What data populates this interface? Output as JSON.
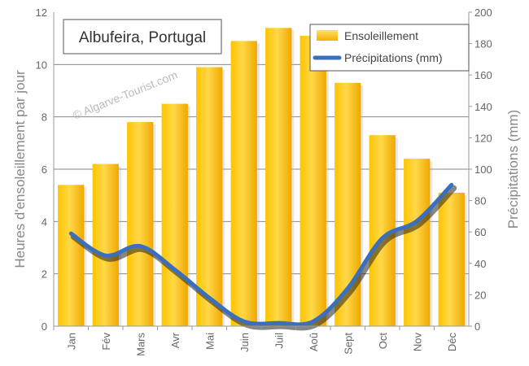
{
  "chart_data": {
    "type": "bar",
    "title": "Albufeira, Portugal",
    "watermark": "© Algarve-Tourist.com",
    "categories": [
      "Jan",
      "Fév",
      "Mars",
      "Avr",
      "Mai",
      "Juin",
      "Juil",
      "Aoû",
      "Sept",
      "Oct",
      "Nov",
      "Déc"
    ],
    "series": [
      {
        "name": "Ensoleillement",
        "type": "bar",
        "axis": "left",
        "color": "#f5b800",
        "values": [
          5.4,
          6.2,
          7.8,
          8.5,
          9.9,
          10.9,
          11.4,
          11.1,
          9.3,
          7.3,
          6.4,
          5.1
        ]
      },
      {
        "name": "Précipitations (mm)",
        "type": "line",
        "axis": "right",
        "color": "#3a6fbd",
        "values": [
          59,
          45,
          51,
          36,
          18,
          3,
          2,
          3,
          24,
          56,
          67,
          90
        ]
      }
    ],
    "ylabel": "Heures d'ensoleillement par jour",
    "ylabel_right": "Précipitations (mm)",
    "ylim": [
      0,
      12
    ],
    "ylim_right": [
      0,
      200
    ],
    "yticks": [
      "0",
      "2",
      "4",
      "6",
      "8",
      "10",
      "12"
    ],
    "yticks_right": [
      "0",
      "20",
      "40",
      "60",
      "80",
      "100",
      "120",
      "140",
      "160",
      "180",
      "200"
    ],
    "grid": true,
    "legend": "top-right"
  }
}
